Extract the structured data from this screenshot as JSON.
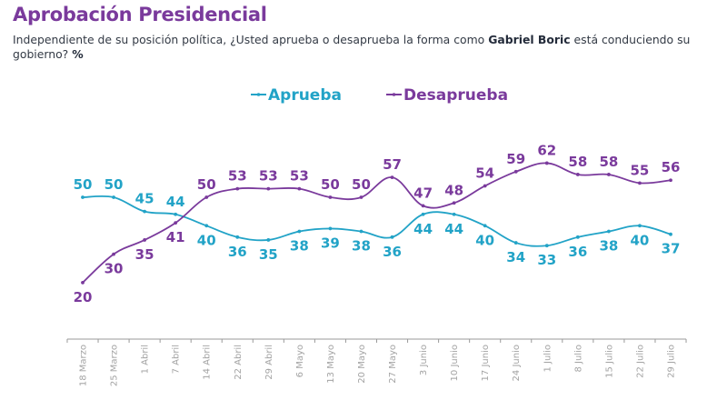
{
  "header": {
    "title": "Aprobación Presidencial",
    "subtitle_part1": "Independiente de su posición política, ¿Usted aprueba o desaprueba la forma como ",
    "subtitle_bold": "Gabriel Boric",
    "subtitle_part2": " está conduciendo su gobierno? ",
    "subtitle_unit": "%"
  },
  "chart_data": {
    "type": "line",
    "title": "Aprobación Presidencial",
    "xlabel": "",
    "ylabel": "%",
    "ylim": [
      15,
      65
    ],
    "grid": false,
    "legend_position": "top-center",
    "categories": [
      "18 Marzo",
      "25 Marzo",
      "1 Abril",
      "7 Abril",
      "14 Abril",
      "22 Abril",
      "29 Abril",
      "6 Mayo",
      "13 Mayo",
      "20 Mayo",
      "27 Mayo",
      "3 Junio",
      "10 Junio",
      "17 Junio",
      "24 Junio",
      "1 Julio",
      "8 Julio",
      "15 Julio",
      "22 Julio",
      "29 Julio"
    ],
    "series": [
      {
        "name": "Aprueba",
        "color": "#22a3c7",
        "values": [
          50,
          50,
          45,
          44,
          40,
          36,
          35,
          38,
          39,
          38,
          36,
          44,
          44,
          40,
          34,
          33,
          36,
          38,
          40,
          37
        ],
        "label_positions": [
          "above",
          "above",
          "above",
          "above",
          "below",
          "below",
          "below",
          "below",
          "below",
          "below",
          "below",
          "below",
          "below",
          "below",
          "below",
          "below",
          "below",
          "below",
          "below",
          "below"
        ]
      },
      {
        "name": "Desaprueba",
        "color": "#7a3a9c",
        "values": [
          20,
          30,
          35,
          41,
          50,
          53,
          53,
          53,
          50,
          50,
          57,
          47,
          48,
          54,
          59,
          62,
          58,
          58,
          55,
          56
        ],
        "label_positions": [
          "below",
          "below",
          "below",
          "below",
          "above",
          "above",
          "above",
          "above",
          "above",
          "above",
          "above",
          "above",
          "above",
          "above",
          "above",
          "above",
          "above",
          "above",
          "above",
          "above"
        ]
      }
    ]
  }
}
